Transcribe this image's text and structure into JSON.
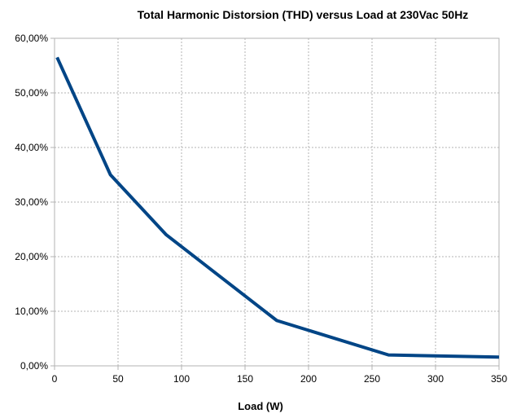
{
  "chart_data": {
    "type": "line",
    "title": "Total Harmonic Distorsion (THD) versus Load at 230Vac 50Hz",
    "xlabel": "Load (W)",
    "ylabel": "",
    "xlim": [
      0,
      350
    ],
    "ylim": [
      0,
      60
    ],
    "x_ticks": [
      0,
      50,
      100,
      150,
      200,
      250,
      300,
      350
    ],
    "x_tick_labels": [
      "0",
      "50",
      "100",
      "150",
      "200",
      "250",
      "300",
      "350"
    ],
    "y_ticks": [
      0,
      10,
      20,
      30,
      40,
      50,
      60
    ],
    "y_tick_labels": [
      "0,00%",
      "10,00%",
      "20,00%",
      "30,00%",
      "40,00%",
      "50,00%",
      "60,00%"
    ],
    "grid": true,
    "legend": "none",
    "series": [
      {
        "color": "#004586",
        "x": [
          2,
          44,
          88,
          175,
          263,
          350
        ],
        "y": [
          56.5,
          35.0,
          24.0,
          8.3,
          2.0,
          1.6
        ]
      }
    ]
  }
}
